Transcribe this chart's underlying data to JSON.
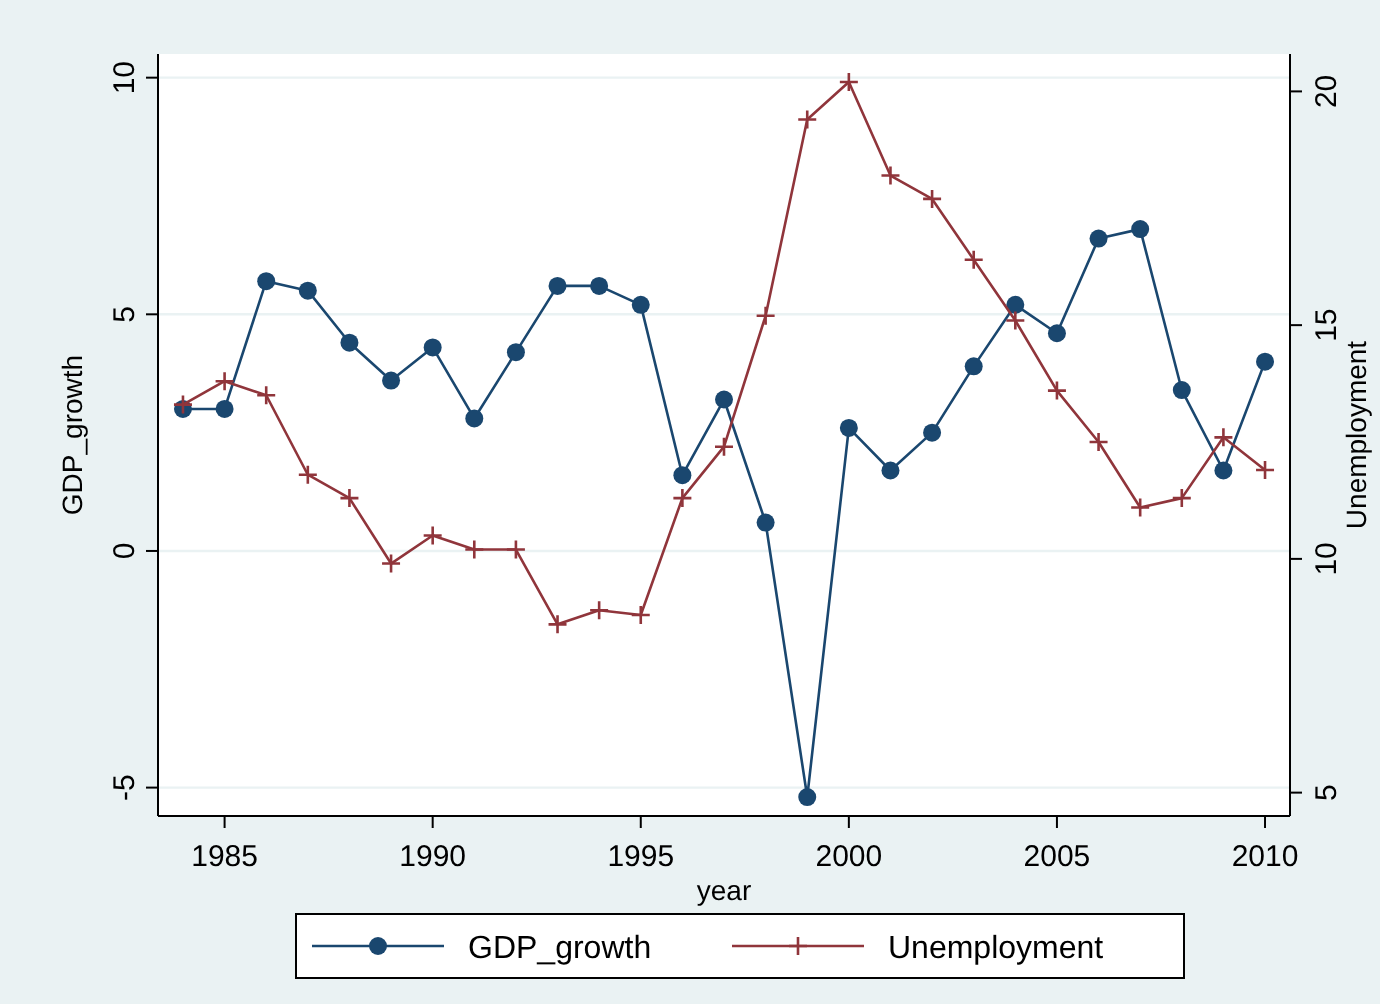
{
  "chart_data": {
    "type": "line",
    "xlabel": "year",
    "ylabel": "GDP_growth",
    "y2label": "Unemployment",
    "x": [
      1984,
      1985,
      1986,
      1987,
      1988,
      1989,
      1990,
      1991,
      1992,
      1993,
      1994,
      1995,
      1996,
      1997,
      1998,
      1999,
      2000,
      2001,
      2002,
      2003,
      2004,
      2005,
      2006,
      2007,
      2008,
      2009,
      2010
    ],
    "series": [
      {
        "name": "GDP_growth",
        "color": "#1a476f",
        "marker": "circle",
        "values": [
          3.0,
          3.0,
          5.7,
          5.5,
          4.4,
          3.6,
          4.3,
          2.8,
          4.2,
          5.6,
          5.6,
          5.2,
          1.6,
          3.2,
          0.6,
          -5.2,
          2.6,
          1.7,
          2.5,
          3.9,
          5.2,
          4.6,
          6.6,
          6.8,
          3.4,
          1.7,
          4.0
        ]
      },
      {
        "name": "Unemployment",
        "color": "#90353b",
        "marker": "cross",
        "axis": "y2",
        "values": [
          13.3,
          13.8,
          13.5,
          11.8,
          11.3,
          9.9,
          10.5,
          10.2,
          10.2,
          8.6,
          8.9,
          8.8,
          11.3,
          12.4,
          15.2,
          19.4,
          20.2,
          18.2,
          17.7,
          16.4,
          15.1,
          13.6,
          12.5,
          11.1,
          11.3,
          12.6,
          11.9
        ]
      }
    ],
    "xlim": [
      1983.4,
      2010.6
    ],
    "xticks": [
      1985,
      1990,
      1995,
      2000,
      2005,
      2010
    ],
    "ylim": [
      -5.6,
      10.5
    ],
    "yticks": [
      -5,
      0,
      5,
      10
    ],
    "y2lim": [
      4.5,
      20.8
    ],
    "y2ticks": [
      5,
      10,
      15,
      20
    ],
    "grid": "y",
    "legend": "bottom",
    "line_style": "solid"
  }
}
